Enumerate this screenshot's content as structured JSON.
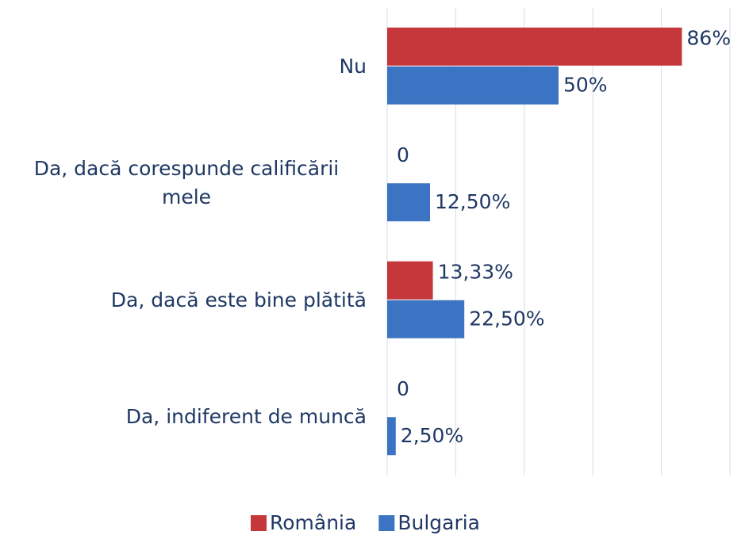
{
  "chart_data": {
    "type": "barh",
    "categories": [
      "Nu",
      "Da, dacă corespunde calificării mele",
      "Da, dacă este bine plătită",
      "Da, indiferent de muncă"
    ],
    "series": [
      {
        "name": "România",
        "color": "#c5373a",
        "values": [
          86,
          0,
          13.33,
          0
        ],
        "value_labels": [
          "86%",
          "0",
          "13,33%",
          "0"
        ]
      },
      {
        "name": "Bulgaria",
        "color": "#3b74c2",
        "values": [
          50,
          12.5,
          22.5,
          2.5
        ],
        "value_labels": [
          "50%",
          "12,50%",
          "22,50%",
          "2,50%"
        ]
      }
    ],
    "xlim": [
      0,
      100
    ],
    "xticks": [
      0,
      20,
      40,
      60,
      80,
      100
    ],
    "grid": true,
    "legend": "bottom"
  }
}
